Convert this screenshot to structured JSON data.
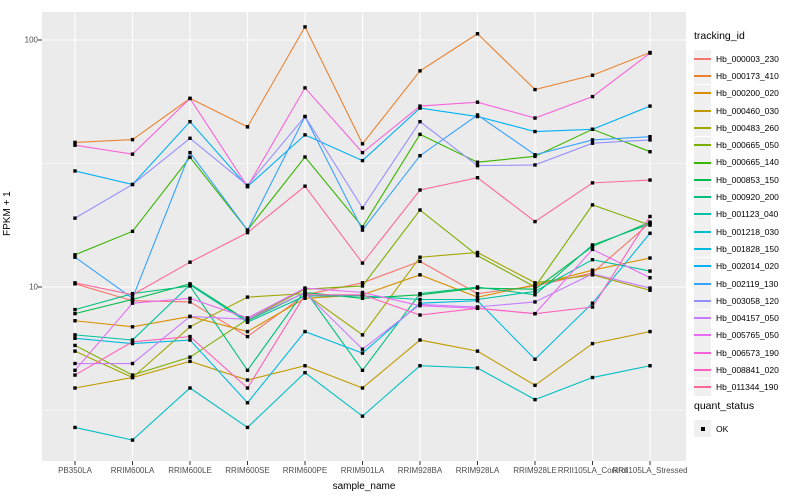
{
  "chart_data": {
    "type": "line",
    "title": "",
    "xlabel": "sample_name",
    "ylabel": "FPKM + 1",
    "y_scale": "log10",
    "y_ticks": [
      {
        "value": 10,
        "label": "10"
      },
      {
        "value": 100,
        "label": "100"
      }
    ],
    "y_minor_gridlines": [
      3.162,
      31.62
    ],
    "ylim_log": [
      1.98,
      132
    ],
    "grid": "on",
    "panel_bg": "#EBEBEB",
    "gridline_color": "#FFFFFF",
    "point_color": "#000000",
    "legend_position": "right",
    "categories": [
      "PB350LA",
      "RRIM600LA",
      "RRIM600LE",
      "RRIM600SE",
      "RRIM600PE",
      "RRIM901LA",
      "RRIM928BA",
      "RRIM928LA",
      "RRIM928LE",
      "RRII105LA_Control",
      "RRII105LA_Stressed"
    ],
    "series": [
      {
        "name": "Hb_000003_230",
        "color": "#F8766D",
        "values": [
          10.3,
          8.8,
          8.7,
          6.3,
          9.3,
          10.4,
          12.7,
          9.4,
          10.1,
          11.4,
          18.2
        ]
      },
      {
        "name": "Hb_000173_410",
        "color": "#EA8331",
        "values": [
          38.5,
          39.5,
          58,
          44.5,
          113,
          38,
          75,
          106,
          63,
          72,
          89
        ]
      },
      {
        "name": "Hb_000200_020",
        "color": "#D89000",
        "values": [
          7.3,
          6.9,
          7.6,
          6.6,
          9.0,
          9.3,
          11.2,
          9.1,
          10.2,
          11.7,
          13.1
        ]
      },
      {
        "name": "Hb_000460_030",
        "color": "#C09B00",
        "values": [
          3.9,
          4.3,
          5.0,
          4.2,
          4.8,
          3.9,
          6.1,
          5.5,
          4.0,
          5.9,
          6.6
        ]
      },
      {
        "name": "Hb_000483_260",
        "color": "#A3A500",
        "values": [
          5.5,
          4.3,
          6.9,
          9.1,
          9.4,
          6.4,
          13.2,
          13.8,
          10.4,
          11.2,
          9.7
        ]
      },
      {
        "name": "Hb_000665_050",
        "color": "#7CAE00",
        "values": [
          5.8,
          4.4,
          5.2,
          7.4,
          9.8,
          10.1,
          20.5,
          13.4,
          10.0,
          21.5,
          17.8
        ]
      },
      {
        "name": "Hb_000665_140",
        "color": "#39B600",
        "values": [
          13.5,
          16.8,
          33.5,
          17.0,
          33.6,
          17.5,
          41.5,
          32,
          33.8,
          43.5,
          35.3
        ]
      },
      {
        "name": "Hb_000853_150",
        "color": "#00BB4E",
        "values": [
          7.8,
          8.9,
          10.3,
          7.3,
          9.5,
          9.0,
          9.3,
          9.9,
          9.8,
          14.6,
          18.3
        ]
      },
      {
        "name": "Hb_000920_200",
        "color": "#00BF7D",
        "values": [
          8.1,
          9.4,
          10.1,
          4.6,
          9.7,
          4.6,
          9.4,
          10.0,
          9.3,
          14.8,
          18.0
        ]
      },
      {
        "name": "Hb_001123_040",
        "color": "#00C1A3",
        "values": [
          6.4,
          6.1,
          10.2,
          7.2,
          9.2,
          9.2,
          8.9,
          8.9,
          9.6,
          12.9,
          11.6
        ]
      },
      {
        "name": "Hb_001218_030",
        "color": "#00BFC4",
        "values": [
          2.7,
          2.4,
          3.9,
          2.7,
          4.5,
          3.0,
          4.8,
          4.7,
          3.5,
          4.3,
          4.8
        ]
      },
      {
        "name": "Hb_001828_150",
        "color": "#00BAE0",
        "values": [
          6.2,
          5.9,
          6.1,
          3.4,
          6.6,
          5.4,
          8.6,
          8.8,
          5.1,
          8.6,
          16.5
        ]
      },
      {
        "name": "Hb_002014_020",
        "color": "#00B0F6",
        "values": [
          29.5,
          26,
          46.7,
          25.5,
          41.3,
          32.5,
          53,
          49,
          42.6,
          43.5,
          54
        ]
      },
      {
        "name": "Hb_002119_130",
        "color": "#35A2FF",
        "values": [
          13.2,
          9.0,
          35,
          17.0,
          49,
          17.0,
          34,
          49.7,
          34.3,
          39.4,
          40.6
        ]
      },
      {
        "name": "Hb_003058_120",
        "color": "#9590FF",
        "values": [
          19,
          26,
          40,
          25.8,
          49,
          20.9,
          46.7,
          31,
          31.2,
          38.2,
          39.4
        ]
      },
      {
        "name": "Hb_004157_050",
        "color": "#C77CFF",
        "values": [
          4.9,
          4.9,
          7.6,
          7.4,
          9.5,
          5.6,
          8.5,
          8.3,
          8.7,
          11.3,
          9.9
        ]
      },
      {
        "name": "Hb_005765_050",
        "color": "#E76BF3",
        "values": [
          4.6,
          8.6,
          9.0,
          7.5,
          9.9,
          9.5,
          8.4,
          8.2,
          7.8,
          14.2,
          10.9
        ]
      },
      {
        "name": "Hb_006573_190",
        "color": "#FA62DB",
        "values": [
          37.5,
          34.5,
          58,
          25.5,
          64,
          35,
          54,
          56,
          48.3,
          59,
          88.5
        ]
      },
      {
        "name": "Hb_008841_020",
        "color": "#FF62BC",
        "values": [
          4.4,
          6.0,
          6.3,
          3.9,
          9.3,
          9.3,
          7.7,
          8.2,
          7.8,
          8.3,
          19.3
        ]
      },
      {
        "name": "Hb_011344_190",
        "color": "#FF6A98",
        "values": [
          10.4,
          9.3,
          12.6,
          16.6,
          25.6,
          12.5,
          24.7,
          27.7,
          18.4,
          26.4,
          27.1
        ]
      }
    ]
  },
  "legend": {
    "title": "tracking_id"
  },
  "legend2": {
    "title": "quant_status",
    "items": [
      {
        "label": "OK"
      }
    ]
  }
}
